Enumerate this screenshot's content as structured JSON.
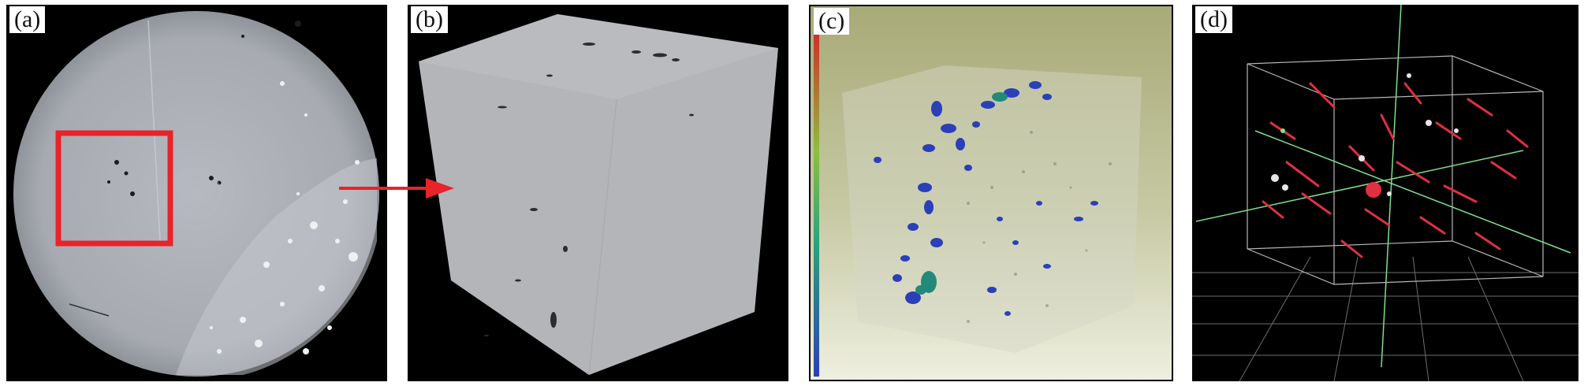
{
  "panels": [
    {
      "id": "a",
      "label": "(a)"
    },
    {
      "id": "b",
      "label": "(b)"
    },
    {
      "id": "c",
      "label": "(c)"
    },
    {
      "id": "d",
      "label": "(d)"
    }
  ],
  "colors": {
    "highlight_box": "#e8232a",
    "arrow": "#e8232a",
    "pores_c": "#2a3fb8",
    "pores_d": "#e03040",
    "axis_d": "#7fe08a"
  }
}
